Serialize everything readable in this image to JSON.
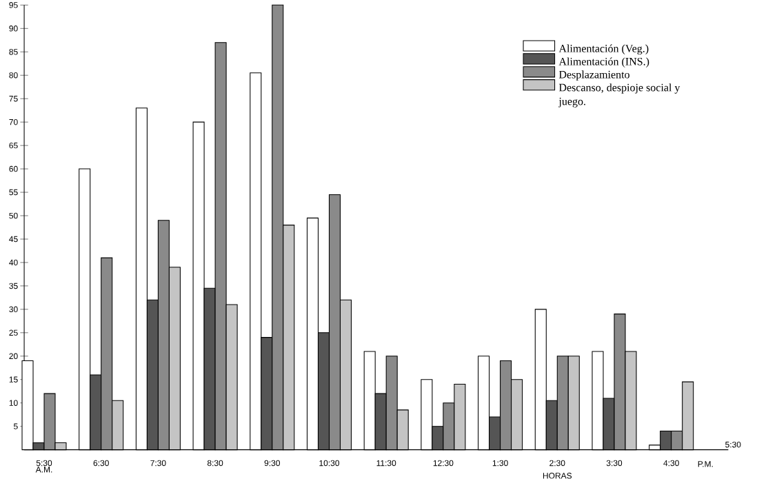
{
  "chart_data": {
    "type": "bar",
    "xlabel": "HORAS",
    "categories": [
      "5:30",
      "6:30",
      "7:30",
      "8:30",
      "9:30",
      "10:30",
      "11:30",
      "12:30",
      "1:30",
      "2:30",
      "3:30",
      "4:30"
    ],
    "series": [
      {
        "name": "Alimentación (Veg.)",
        "color": "#ffffff",
        "values": [
          19,
          60,
          73,
          70,
          80.5,
          49.5,
          21,
          15,
          20,
          30,
          21,
          1
        ]
      },
      {
        "name": "Alimentación (INS.)",
        "color": "#555555",
        "values": [
          1.5,
          16,
          32,
          34.5,
          24,
          25,
          12,
          5,
          7,
          10.5,
          11,
          4
        ]
      },
      {
        "name": "Desplazamiento",
        "color": "#8a8a8a",
        "values": [
          12,
          41,
          49,
          87,
          95,
          54.5,
          20,
          10,
          19,
          20,
          29,
          4
        ]
      },
      {
        "name": "Descanso, despioje social y juego.",
        "color": "#c4c4c4",
        "values": [
          1.5,
          10.5,
          39,
          31,
          48,
          32,
          8.5,
          14,
          15,
          20,
          21,
          14.5
        ]
      }
    ],
    "ylim": [
      0,
      95
    ],
    "yticks": [
      5,
      10,
      15,
      20,
      25,
      30,
      35,
      40,
      45,
      50,
      55,
      60,
      65,
      70,
      75,
      80,
      85,
      90,
      95
    ],
    "annotations": [
      "A.M.",
      "5:30",
      "P.M."
    ],
    "legend": "top right",
    "grid": false
  }
}
